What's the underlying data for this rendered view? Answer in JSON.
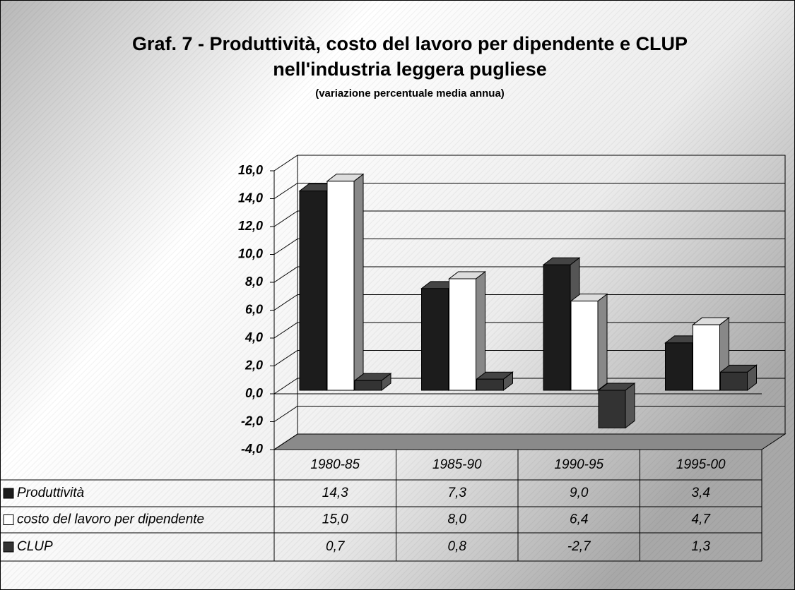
{
  "chart_data": {
    "type": "bar3d",
    "title": "Graf. 7 - Produttività, costo del lavoro per dipendente e CLUP nell'industria leggera pugliese",
    "subtitle": "(variazione percentuale media annua)",
    "categories": [
      "1980-85",
      "1985-90",
      "1990-95",
      "1995-00"
    ],
    "series": [
      {
        "name": "Produttività",
        "color": "#1c1c1c",
        "values": [
          14.3,
          7.3,
          9.0,
          3.4
        ],
        "value_labels": [
          "14,3",
          "7,3",
          "9,0",
          "3,4"
        ]
      },
      {
        "name": "costo del lavoro per dipendente",
        "color": "#ffffff",
        "values": [
          15.0,
          8.0,
          6.4,
          4.7
        ],
        "value_labels": [
          "15,0",
          "8,0",
          "6,4",
          "4,7"
        ]
      },
      {
        "name": "CLUP",
        "color": "#333333",
        "values": [
          0.7,
          0.8,
          -2.7,
          1.3
        ],
        "value_labels": [
          "0,7",
          "0,8",
          "-2,7",
          "1,3"
        ]
      }
    ],
    "ylim": [
      -4,
      16
    ],
    "yticks": [
      {
        "value": -4,
        "label": "-4,0"
      },
      {
        "value": -2,
        "label": "-2,0"
      },
      {
        "value": 0,
        "label": "0,0"
      },
      {
        "value": 2,
        "label": "2,0"
      },
      {
        "value": 4,
        "label": "4,0"
      },
      {
        "value": 6,
        "label": "6,0"
      },
      {
        "value": 8,
        "label": "8,0"
      },
      {
        "value": 10,
        "label": "10,0"
      },
      {
        "value": 12,
        "label": "12,0"
      },
      {
        "value": 14,
        "label": "14,0"
      },
      {
        "value": 16,
        "label": "16,0"
      }
    ],
    "grid": true
  }
}
